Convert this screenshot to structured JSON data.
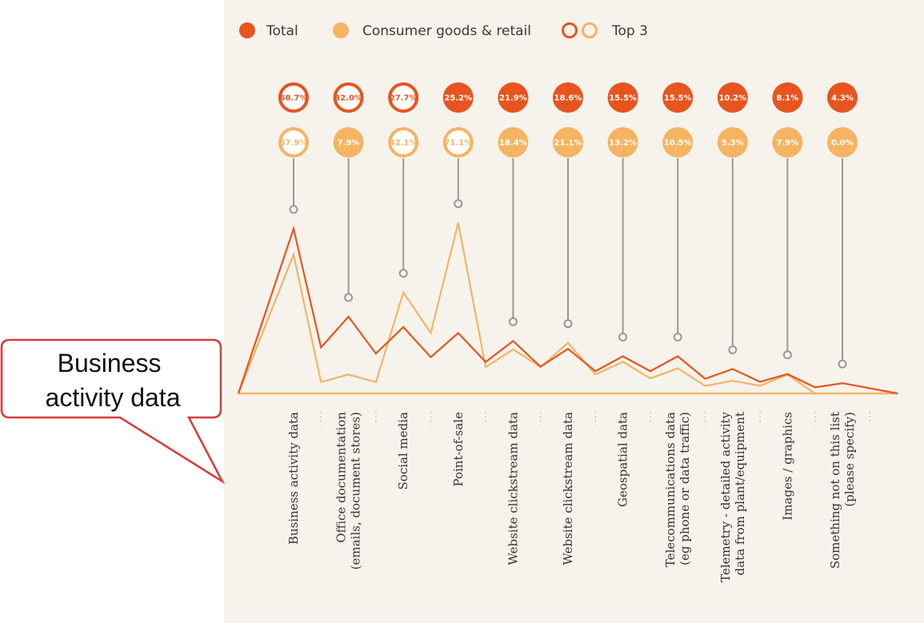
{
  "legend": {
    "total": "Total",
    "consumer": "Consumer goods & retail",
    "top3": "Top 3"
  },
  "colors": {
    "total": "#e8541e",
    "consumer": "#f5b462",
    "background": "#f6f3ec",
    "connector": "#999999",
    "callout_border": "#d93a3a"
  },
  "callout": {
    "lines": [
      "Business",
      "activity data"
    ]
  },
  "chart_data": {
    "type": "line",
    "categories": [
      [
        "Business activity data"
      ],
      [
        "Office documentation",
        "(emails, document stores)"
      ],
      [
        "Social media"
      ],
      [
        "Point-of-sale"
      ],
      [
        "Website clickstream data"
      ],
      [
        "Website clickstream data"
      ],
      [
        "Geospatial data"
      ],
      [
        "Telecommunications data",
        "(eg phone or data traffic)"
      ],
      [
        "Telemetry - detailed activity",
        "data from plant/equipment"
      ],
      [
        "Images / graphics"
      ],
      [
        "Something not on this list",
        "(please specify)"
      ]
    ],
    "series": [
      {
        "name": "Total",
        "values": [
          68.7,
          32.0,
          27.7,
          25.2,
          21.9,
          18.6,
          15.5,
          15.5,
          10.2,
          8.1,
          4.3
        ],
        "labels": [
          "68.7%",
          "32.0%",
          "27.7%",
          "25.2%",
          "21.9%",
          "18.6%",
          "15.5%",
          "15.5%",
          "10.2%",
          "8.1%",
          "4.3%"
        ],
        "top3": [
          true,
          true,
          true,
          false,
          false,
          false,
          false,
          false,
          false,
          false,
          false
        ]
      },
      {
        "name": "Consumer goods & retail",
        "values": [
          57.9,
          7.9,
          42.1,
          71.1,
          18.4,
          21.1,
          13.2,
          10.5,
          5.3,
          7.9,
          0.0
        ],
        "labels": [
          "57.9%",
          "7.9%",
          "42.1%",
          "71.1%",
          "18.4%",
          "21.1%",
          "13.2%",
          "10.5%",
          "5.3%",
          "7.9%",
          "0.0%"
        ],
        "top3": [
          true,
          false,
          true,
          true,
          false,
          false,
          false,
          false,
          false,
          false,
          false
        ]
      }
    ]
  }
}
